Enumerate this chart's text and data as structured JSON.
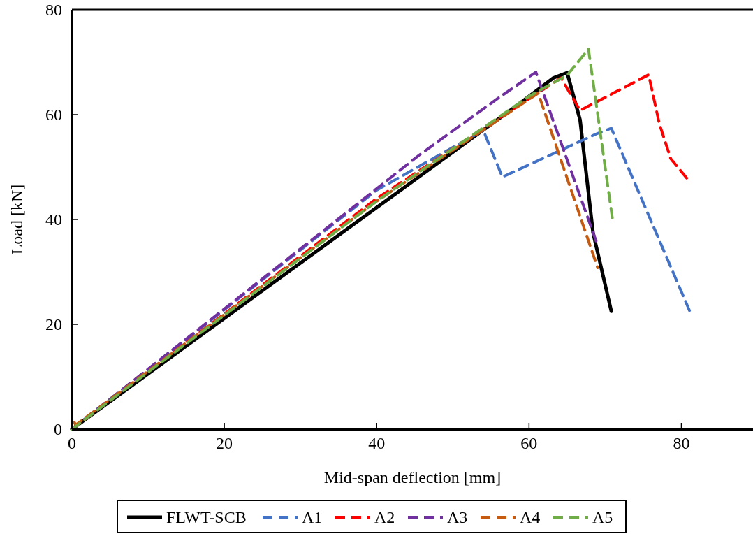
{
  "chart_data": {
    "type": "line",
    "xlabel": "Mid-span deflection [mm]",
    "ylabel": "Load [kN]",
    "xlim": [
      0,
      89.4
    ],
    "ylim": [
      0,
      80
    ],
    "xticks": [
      0,
      20,
      40,
      60,
      80
    ],
    "yticks": [
      0,
      20,
      40,
      60,
      80
    ],
    "grid": false,
    "legend": "bottom",
    "marker": "none",
    "series": [
      {
        "name": "FLWT-SCB",
        "color": "#000000",
        "line_style": "solid",
        "x": [
          0,
          58,
          63.2,
          65,
          66.7,
          68.4,
          70.8
        ],
        "values": [
          0,
          61.3,
          67,
          68,
          59,
          37.5,
          22.5
        ]
      },
      {
        "name": "A1",
        "color": "#4472c4",
        "line_style": "dashed",
        "x": [
          0,
          40,
          54,
          56.5,
          68.8,
          70.8,
          81.1
        ],
        "values": [
          0,
          45.6,
          57,
          48.1,
          56.3,
          57.4,
          22.5
        ]
      },
      {
        "name": "A2",
        "color": "#ff0000",
        "line_style": "dashed",
        "x": [
          0,
          40,
          62.7,
          64.2,
          66.7,
          75.7,
          77.1,
          78.6,
          81.1
        ],
        "values": [
          0,
          44,
          65.6,
          67,
          60.8,
          67.6,
          58.3,
          51.6,
          47.2
        ]
      },
      {
        "name": "A3",
        "color": "#7030a0",
        "line_style": "dashed",
        "x": [
          0,
          45.6,
          56,
          60.9,
          62.1,
          68.8
        ],
        "values": [
          0,
          52.3,
          63.2,
          68.1,
          63.2,
          35.9
        ]
      },
      {
        "name": "A4",
        "color": "#c55a11",
        "line_style": "dashed",
        "x": [
          0,
          0,
          0.5,
          40,
          61.2,
          69
        ],
        "values": [
          0,
          2.1,
          0.8,
          43.5,
          64.1,
          30.8
        ]
      },
      {
        "name": "A5",
        "color": "#70ad47",
        "line_style": "dashed",
        "x": [
          0,
          40,
          60,
          65,
          67.8,
          71
        ],
        "values": [
          0,
          43.5,
          63.5,
          67.5,
          72.5,
          39.6
        ]
      }
    ]
  }
}
